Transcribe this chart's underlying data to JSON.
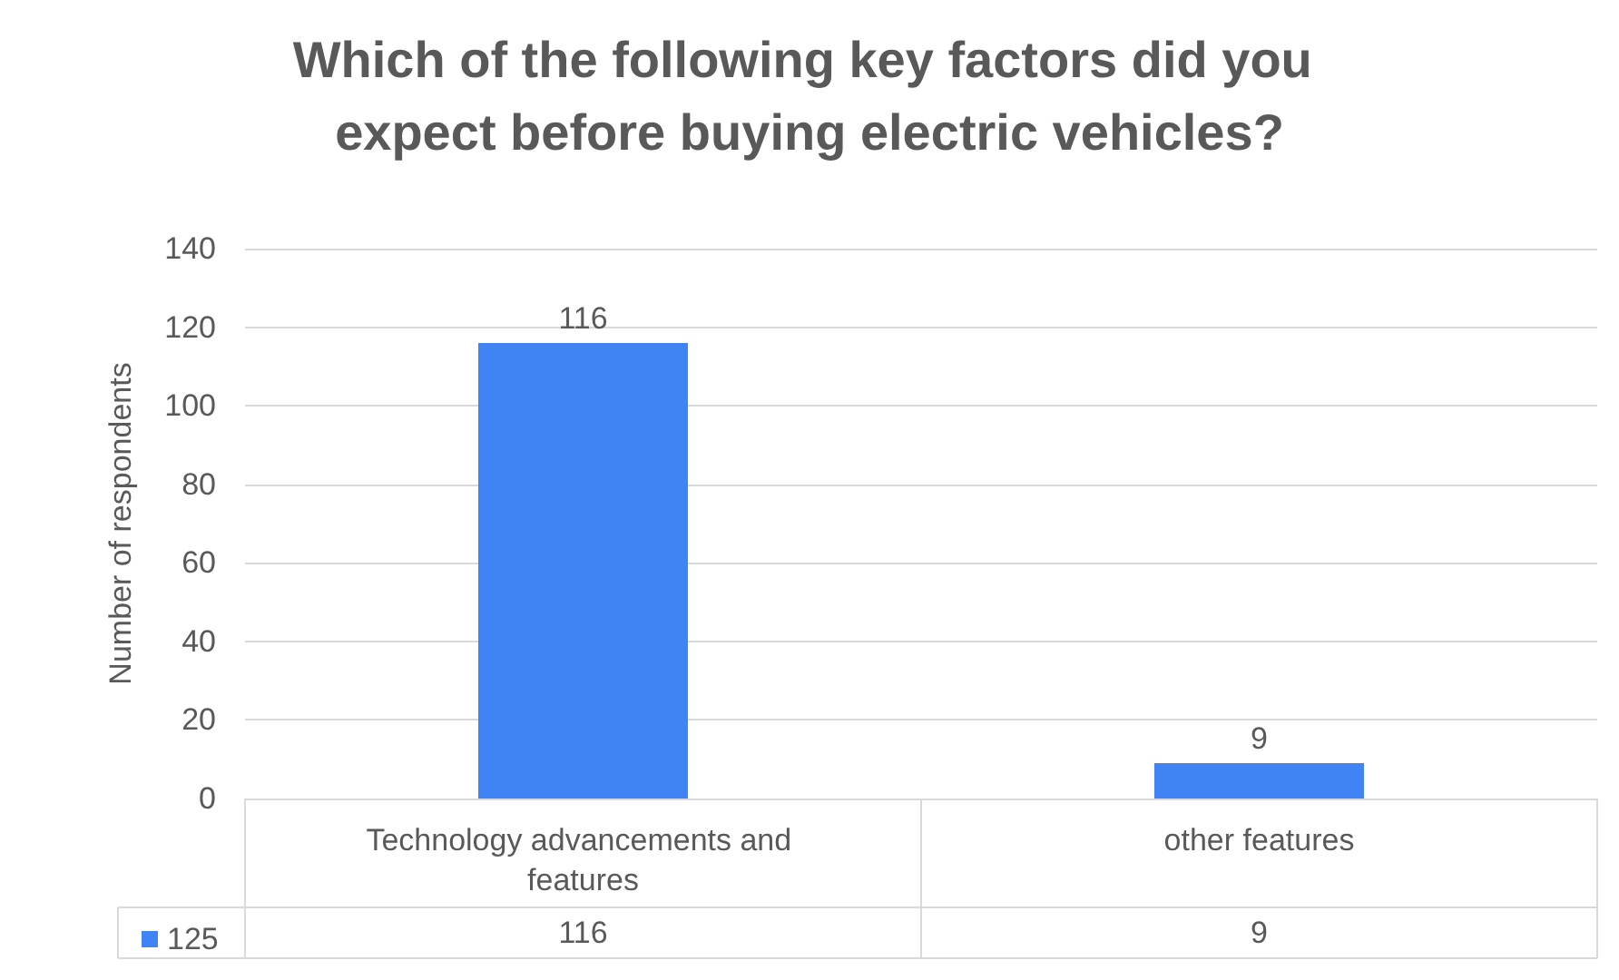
{
  "chart_data": {
    "type": "bar",
    "title": "Which of the following key factors did you expect before buying electric vehicles?",
    "ylabel": "Number of respondents",
    "categories": [
      "Technology advancements and features",
      "other features"
    ],
    "series": [
      {
        "name": "125",
        "color": "#3f83f4",
        "values": [
          116,
          9
        ]
      }
    ],
    "ylim": [
      0,
      140
    ],
    "yticks": [
      0,
      20,
      40,
      60,
      80,
      100,
      120,
      140
    ],
    "grid": "y",
    "legend": "bottom left",
    "data_labels": true,
    "annotations": [
      "116",
      "9"
    ]
  }
}
